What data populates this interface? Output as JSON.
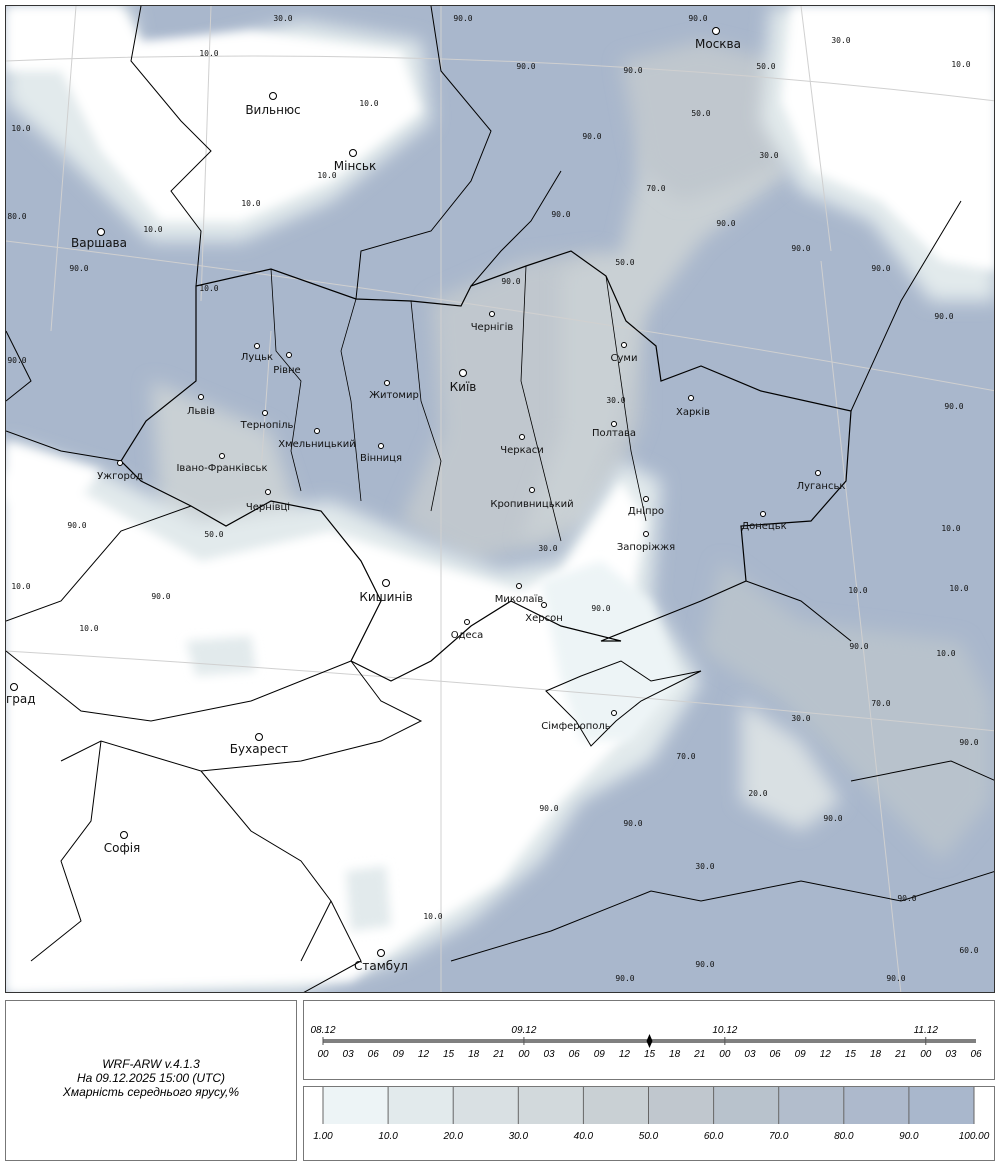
{
  "info": {
    "model": "WRF-ARW v.4.1.3",
    "valid_time": "На 09.12.2025 15:00 (UTC)",
    "parameter": "Хмарність середнього ярусу,%"
  },
  "timeline": {
    "dates": [
      "08.12",
      "09.12",
      "10.12",
      "11.12"
    ],
    "hours": [
      "00",
      "03",
      "06",
      "09",
      "12",
      "15",
      "18",
      "21",
      "00",
      "03",
      "06",
      "09",
      "12",
      "15",
      "18",
      "21",
      "00",
      "03",
      "06",
      "09",
      "12",
      "15",
      "18",
      "21",
      "00",
      "03",
      "06"
    ],
    "current_index": 13
  },
  "legend": {
    "labels": [
      "1.00",
      "10.0",
      "20.0",
      "30.0",
      "40.0",
      "50.0",
      "60.0",
      "70.0",
      "80.0",
      "90.0",
      "100.00"
    ],
    "colors": [
      "#edf4f6",
      "#e2eaec",
      "#d9e0e3",
      "#d2d9dc",
      "#c9d0d4",
      "#c0c7ce",
      "#b8c2cc",
      "#b2bdcc",
      "#adb9cc",
      "#a9b7cc"
    ]
  },
  "cities": [
    {
      "name": "Москва",
      "capital": true
    },
    {
      "name": "Вильнюс",
      "capital": true
    },
    {
      "name": "Мінськ",
      "capital": true
    },
    {
      "name": "Варшава",
      "capital": true
    },
    {
      "name": "Київ",
      "capital": true
    },
    {
      "name": "Кишинів",
      "capital": true
    },
    {
      "name": "Бухарест",
      "capital": true
    },
    {
      "name": "Софія",
      "capital": true
    },
    {
      "name": "Стамбул",
      "capital": true
    },
    {
      "name": "град",
      "capital": true
    },
    {
      "name": "Луцьк"
    },
    {
      "name": "Рівне"
    },
    {
      "name": "Житомир"
    },
    {
      "name": "Чернігів"
    },
    {
      "name": "Суми"
    },
    {
      "name": "Львів"
    },
    {
      "name": "Тернопіль"
    },
    {
      "name": "Хмельницький"
    },
    {
      "name": "Вінниця"
    },
    {
      "name": "Черкаси"
    },
    {
      "name": "Полтава"
    },
    {
      "name": "Харків"
    },
    {
      "name": "Луганськ"
    },
    {
      "name": "Донецьк"
    },
    {
      "name": "Дніпро"
    },
    {
      "name": "Запоріжжя"
    },
    {
      "name": "Кропивницький"
    },
    {
      "name": "Івано-Франківськ"
    },
    {
      "name": "Ужгород"
    },
    {
      "name": "Чернівці"
    },
    {
      "name": "Одеса"
    },
    {
      "name": "Миколаїв"
    },
    {
      "name": "Херсон"
    },
    {
      "name": "Сімферополь"
    }
  ],
  "contour_labels": [
    "30.0",
    "90.0",
    "90.0",
    "10.0",
    "10.0",
    "90.0",
    "90.0",
    "30.0",
    "10.0",
    "10.0",
    "50.0",
    "50.0",
    "10.0",
    "10.0",
    "90.0",
    "30.0",
    "10.0",
    "80.0",
    "10.0",
    "90.0",
    "90.0",
    "70.0",
    "90.0",
    "90.0",
    "90.0",
    "50.0",
    "90.0",
    "30.0",
    "90.0",
    "90.0",
    "90.0",
    "30.0",
    "90.0",
    "50.0",
    "90.0",
    "10.0",
    "10.0",
    "90.0",
    "10.0",
    "10.0",
    "10.0",
    "70.0",
    "30.0",
    "90.0",
    "20.0",
    "70.0",
    "90.0",
    "90.0",
    "30.0",
    "10.0",
    "90.0",
    "90.0",
    "90.0",
    "90.0",
    "90.0",
    "60.0",
    "90.0",
    "10.0"
  ],
  "colors": {
    "high_cloud": "#a9b7cc",
    "clear": "#ffffff",
    "border": "#000000"
  }
}
